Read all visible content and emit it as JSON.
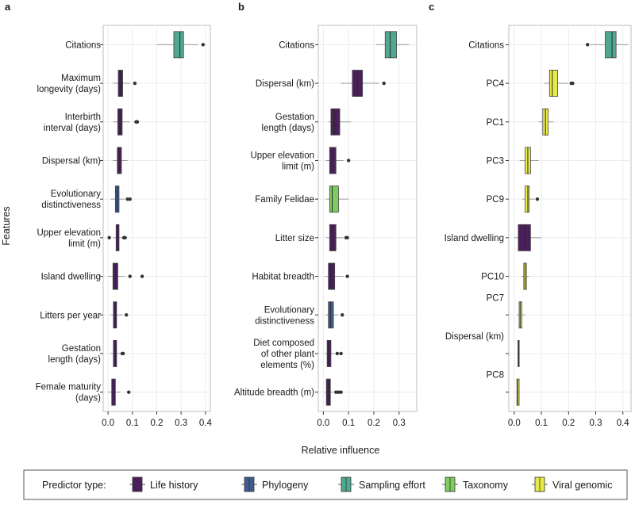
{
  "figure": {
    "y_axis_title": "Features",
    "x_axis_title": "Relative influence"
  },
  "legend": {
    "title": "Predictor type:",
    "items": [
      {
        "label": "Life history",
        "color": "#4a1f5c"
      },
      {
        "label": "Phylogeny",
        "color": "#3f5b8f"
      },
      {
        "label": "Sampling effort",
        "color": "#4fa891"
      },
      {
        "label": "Taxonomy",
        "color": "#7ccd5e"
      },
      {
        "label": "Viral genomic",
        "color": "#e7ea48"
      }
    ]
  },
  "chart_data": [
    {
      "type": "boxplot",
      "panel": "a",
      "xlabel": "Relative influence",
      "ylabel": "Features",
      "xlim": [
        -0.02,
        0.42
      ],
      "xticks": [
        "0.0",
        "0.1",
        "0.2",
        "0.3",
        "0.4"
      ],
      "features": [
        {
          "label": [
            "Citations"
          ],
          "type": "Sampling effort",
          "min": 0.2,
          "q1": 0.27,
          "median": 0.295,
          "q3": 0.31,
          "max": 0.37,
          "outliers": [
            0.39
          ]
        },
        {
          "label": [
            "Maximum",
            "longevity (days)"
          ],
          "type": "Life history",
          "min": 0.02,
          "q1": 0.042,
          "median": 0.052,
          "q3": 0.06,
          "max": 0.09,
          "outliers": [
            0.11
          ]
        },
        {
          "label": [
            "Interbirth",
            "interval (days)"
          ],
          "type": "Life history",
          "min": 0.02,
          "q1": 0.04,
          "median": 0.05,
          "q3": 0.058,
          "max": 0.09,
          "outliers": [
            0.115,
            0.12
          ]
        },
        {
          "label": [
            "Dispersal (km)"
          ],
          "type": "Life history",
          "min": 0.02,
          "q1": 0.038,
          "median": 0.045,
          "q3": 0.055,
          "max": 0.08,
          "outliers": []
        },
        {
          "label": [
            "Evolutionary",
            "distinctiveness"
          ],
          "type": "Phylogeny",
          "min": 0.01,
          "q1": 0.03,
          "median": 0.037,
          "q3": 0.045,
          "max": 0.07,
          "outliers": [
            0.08,
            0.09
          ]
        },
        {
          "label": [
            "Upper elevation",
            "limit (m)"
          ],
          "type": "Life history",
          "min": 0.02,
          "q1": 0.033,
          "median": 0.04,
          "q3": 0.045,
          "max": 0.06,
          "outliers": [
            0.005,
            0.065,
            0.07
          ]
        },
        {
          "label": [
            "Island dwelling"
          ],
          "type": "Life history",
          "min": 0.0,
          "q1": 0.02,
          "median": 0.03,
          "q3": 0.04,
          "max": 0.07,
          "outliers": [
            0.09,
            0.14
          ]
        },
        {
          "label": [
            "Litters per year"
          ],
          "type": "Life history",
          "min": 0.01,
          "q1": 0.022,
          "median": 0.03,
          "q3": 0.035,
          "max": 0.06,
          "outliers": [
            0.075
          ]
        },
        {
          "label": [
            "Gestation",
            "length (days)"
          ],
          "type": "Life history",
          "min": 0.01,
          "q1": 0.022,
          "median": 0.03,
          "q3": 0.035,
          "max": 0.05,
          "outliers": [
            0.058,
            0.062
          ]
        },
        {
          "label": [
            "Female maturity",
            "(days)"
          ],
          "type": "Life history",
          "min": 0.0,
          "q1": 0.015,
          "median": 0.022,
          "q3": 0.03,
          "max": 0.05,
          "outliers": [
            0.085
          ]
        }
      ]
    },
    {
      "type": "boxplot",
      "panel": "b",
      "xlabel": "Relative influence",
      "ylabel": "",
      "xlim": [
        -0.02,
        0.37
      ],
      "xticks": [
        "0.0",
        "0.1",
        "0.2",
        "0.3"
      ],
      "features": [
        {
          "label": [
            "Citations"
          ],
          "type": "Sampling effort",
          "min": 0.21,
          "q1": 0.245,
          "median": 0.265,
          "q3": 0.29,
          "max": 0.34,
          "outliers": []
        },
        {
          "label": [
            "Dispersal (km)"
          ],
          "type": "Life history",
          "min": 0.07,
          "q1": 0.115,
          "median": 0.135,
          "q3": 0.155,
          "max": 0.22,
          "outliers": [
            0.24
          ]
        },
        {
          "label": [
            "Gestation",
            "length (days)"
          ],
          "type": "Life history",
          "min": 0.02,
          "q1": 0.03,
          "median": 0.045,
          "q3": 0.065,
          "max": 0.11,
          "outliers": []
        },
        {
          "label": [
            "Upper elevation",
            "limit (m)"
          ],
          "type": "Life history",
          "min": 0.01,
          "q1": 0.025,
          "median": 0.035,
          "q3": 0.05,
          "max": 0.08,
          "outliers": [
            0.1
          ]
        },
        {
          "label": [
            "Family Felidae"
          ],
          "type": "Taxonomy",
          "min": 0.01,
          "q1": 0.025,
          "median": 0.035,
          "q3": 0.06,
          "max": 0.1,
          "outliers": []
        },
        {
          "label": [
            "Litter size"
          ],
          "type": "Life history",
          "min": 0.01,
          "q1": 0.025,
          "median": 0.035,
          "q3": 0.05,
          "max": 0.08,
          "outliers": [
            0.09,
            0.095
          ]
        },
        {
          "label": [
            "Habitat breadth"
          ],
          "type": "Life history",
          "min": 0.005,
          "q1": 0.02,
          "median": 0.03,
          "q3": 0.045,
          "max": 0.08,
          "outliers": [
            0.095
          ]
        },
        {
          "label": [
            "Evolutionary",
            "distinctiveness"
          ],
          "type": "Phylogeny",
          "min": 0.01,
          "q1": 0.02,
          "median": 0.028,
          "q3": 0.04,
          "max": 0.06,
          "outliers": [
            0.075
          ]
        },
        {
          "label": [
            "Diet composed",
            "of other plant",
            "elements (%)"
          ],
          "type": "Life history",
          "min": 0.005,
          "q1": 0.015,
          "median": 0.022,
          "q3": 0.03,
          "max": 0.045,
          "outliers": [
            0.055,
            0.07
          ]
        },
        {
          "label": [
            "Altitude breadth (m)"
          ],
          "type": "Life history",
          "min": 0.005,
          "q1": 0.012,
          "median": 0.02,
          "q3": 0.028,
          "max": 0.04,
          "outliers": [
            0.05,
            0.06,
            0.07
          ]
        }
      ]
    },
    {
      "type": "boxplot",
      "panel": "c",
      "xlabel": "Relative influence",
      "ylabel": "",
      "xlim": [
        -0.02,
        0.43
      ],
      "xticks": [
        "0.0",
        "0.1",
        "0.2",
        "0.3",
        "0.4"
      ],
      "features": [
        {
          "label": [
            "Citations"
          ],
          "type": "Sampling effort",
          "min": 0.28,
          "q1": 0.335,
          "median": 0.36,
          "q3": 0.375,
          "max": 0.42,
          "outliers": [
            0.27
          ]
        },
        {
          "label": [
            "PC4"
          ],
          "type": "Viral genomic",
          "min": 0.11,
          "q1": 0.13,
          "median": 0.14,
          "q3": 0.16,
          "max": 0.2,
          "outliers": [
            0.21,
            0.215
          ]
        },
        {
          "label": [
            "PC1"
          ],
          "type": "Viral genomic",
          "min": 0.09,
          "q1": 0.105,
          "median": 0.115,
          "q3": 0.125,
          "max": 0.145,
          "outliers": []
        },
        {
          "label": [
            "PC3"
          ],
          "type": "Viral genomic",
          "min": 0.02,
          "q1": 0.04,
          "median": 0.05,
          "q3": 0.06,
          "max": 0.09,
          "outliers": []
        },
        {
          "label": [
            "PC9"
          ],
          "type": "Viral genomic",
          "min": 0.03,
          "q1": 0.04,
          "median": 0.05,
          "q3": 0.055,
          "max": 0.075,
          "outliers": [
            0.085
          ]
        },
        {
          "label": [
            "Island dwelling"
          ],
          "type": "Life history",
          "min": 0.0,
          "q1": 0.015,
          "median": 0.04,
          "q3": 0.06,
          "max": 0.1,
          "outliers": []
        },
        {
          "label": [
            "PC10"
          ],
          "type": "Viral genomic",
          "min": 0.025,
          "q1": 0.035,
          "median": 0.04,
          "q3": 0.045,
          "max": 0.055,
          "outliers": []
        },
        {
          "label": [
            "PC7"
          ],
          "type": "Viral genomic",
          "min": 0.01,
          "q1": 0.018,
          "median": 0.022,
          "q3": 0.028,
          "max": 0.04,
          "outliers": []
        },
        {
          "label": [
            "Dispersal (km)"
          ],
          "type": "Life history",
          "min": 0.012,
          "q1": 0.014,
          "median": 0.015,
          "q3": 0.017,
          "max": 0.018,
          "outliers": []
        },
        {
          "label": [
            "PC8"
          ],
          "type": "Viral genomic",
          "min": 0.008,
          "q1": 0.01,
          "median": 0.012,
          "q3": 0.018,
          "max": 0.02,
          "outliers": []
        }
      ]
    }
  ]
}
